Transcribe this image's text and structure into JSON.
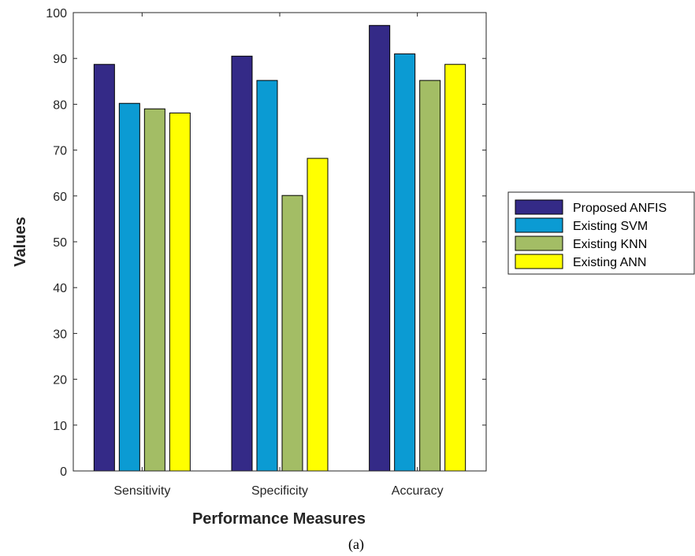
{
  "chart_data": {
    "type": "bar",
    "title": "",
    "xlabel": "Performance Measures",
    "ylabel": "Values",
    "categories": [
      "Sensitivity",
      "Specificity",
      "Accuracy"
    ],
    "series": [
      {
        "name": "Proposed ANFIS",
        "values": [
          88.7,
          90.5,
          97.2
        ],
        "color": "#342a87"
      },
      {
        "name": "Existing SVM",
        "values": [
          80.2,
          85.2,
          91.0
        ],
        "color": "#0b9bd3"
      },
      {
        "name": "Existing KNN",
        "values": [
          79.0,
          60.1,
          85.2
        ],
        "color": "#a3bd65"
      },
      {
        "name": "Existing ANN",
        "values": [
          78.1,
          68.2,
          88.7
        ],
        "color": "#ffff00"
      }
    ],
    "ylim": [
      0,
      100
    ],
    "yticks": [
      0,
      10,
      20,
      30,
      40,
      50,
      60,
      70,
      80,
      90,
      100
    ],
    "legend_position": "right",
    "grid": false
  },
  "caption": "(a)"
}
